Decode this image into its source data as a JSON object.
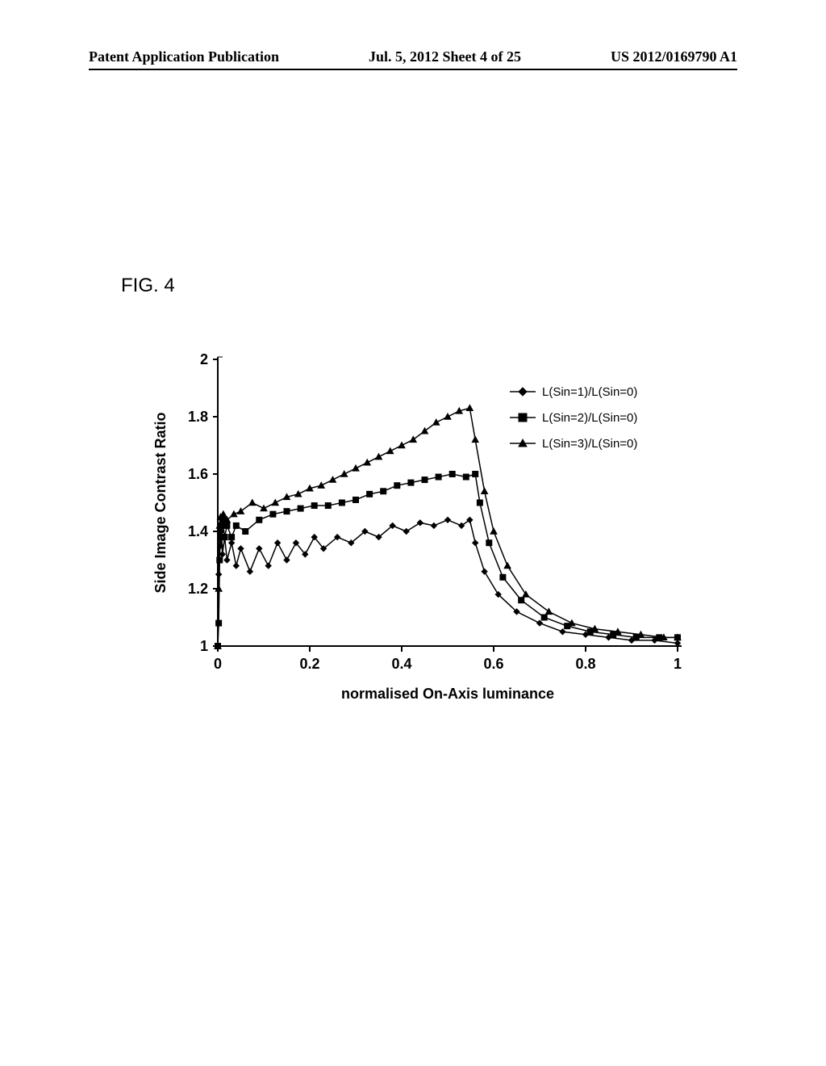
{
  "header": {
    "left": "Patent Application Publication",
    "center": "Jul. 5, 2012  Sheet 4 of 25",
    "right": "US 2012/0169790 A1"
  },
  "figure_label": "FIG.  4",
  "chart": {
    "type": "line",
    "xlabel": "normalised On-Axis luminance",
    "ylabel": "Side Image Contrast Ratio",
    "label_fontsize": 18,
    "tick_fontsize": 18,
    "background_color": "#ffffff",
    "axis_color": "#000000",
    "xlim": [
      0,
      1
    ],
    "ylim": [
      1,
      2
    ],
    "xticks": [
      0,
      0.2,
      0.4,
      0.6,
      0.8,
      1
    ],
    "yticks": [
      1,
      1.2,
      1.4,
      1.6,
      1.8,
      2
    ],
    "legend": {
      "position": "right-top-inside",
      "items": [
        {
          "label": "L(Sin=1)/L(Sin=0)",
          "marker": "diamond",
          "color": "#000000"
        },
        {
          "label": "L(Sin=2)/L(Sin=0)",
          "marker": "square",
          "color": "#000000"
        },
        {
          "label": "L(Sin=3)/L(Sin=0)",
          "marker": "triangle",
          "color": "#000000"
        }
      ]
    },
    "series": [
      {
        "name": "L(Sin=1)/L(Sin=0)",
        "marker": "diamond",
        "color": "#000000",
        "line_width": 1.5,
        "marker_size": 7,
        "points": [
          [
            0.0,
            1.0
          ],
          [
            0.002,
            1.25
          ],
          [
            0.004,
            1.4
          ],
          [
            0.006,
            1.35
          ],
          [
            0.008,
            1.4
          ],
          [
            0.01,
            1.32
          ],
          [
            0.015,
            1.38
          ],
          [
            0.02,
            1.3
          ],
          [
            0.03,
            1.36
          ],
          [
            0.04,
            1.28
          ],
          [
            0.05,
            1.34
          ],
          [
            0.07,
            1.26
          ],
          [
            0.09,
            1.34
          ],
          [
            0.11,
            1.28
          ],
          [
            0.13,
            1.36
          ],
          [
            0.15,
            1.3
          ],
          [
            0.17,
            1.36
          ],
          [
            0.19,
            1.32
          ],
          [
            0.21,
            1.38
          ],
          [
            0.23,
            1.34
          ],
          [
            0.26,
            1.38
          ],
          [
            0.29,
            1.36
          ],
          [
            0.32,
            1.4
          ],
          [
            0.35,
            1.38
          ],
          [
            0.38,
            1.42
          ],
          [
            0.41,
            1.4
          ],
          [
            0.44,
            1.43
          ],
          [
            0.47,
            1.42
          ],
          [
            0.5,
            1.44
          ],
          [
            0.53,
            1.42
          ],
          [
            0.548,
            1.44
          ],
          [
            0.56,
            1.36
          ],
          [
            0.58,
            1.26
          ],
          [
            0.61,
            1.18
          ],
          [
            0.65,
            1.12
          ],
          [
            0.7,
            1.08
          ],
          [
            0.75,
            1.05
          ],
          [
            0.8,
            1.04
          ],
          [
            0.85,
            1.03
          ],
          [
            0.9,
            1.02
          ],
          [
            0.95,
            1.02
          ],
          [
            1.0,
            1.01
          ]
        ]
      },
      {
        "name": "L(Sin=2)/L(Sin=0)",
        "marker": "square",
        "color": "#000000",
        "line_width": 1.5,
        "marker_size": 7,
        "points": [
          [
            0.0,
            1.0
          ],
          [
            0.002,
            1.08
          ],
          [
            0.004,
            1.3
          ],
          [
            0.006,
            1.42
          ],
          [
            0.008,
            1.38
          ],
          [
            0.01,
            1.44
          ],
          [
            0.015,
            1.38
          ],
          [
            0.02,
            1.42
          ],
          [
            0.03,
            1.38
          ],
          [
            0.04,
            1.42
          ],
          [
            0.06,
            1.4
          ],
          [
            0.09,
            1.44
          ],
          [
            0.12,
            1.46
          ],
          [
            0.15,
            1.47
          ],
          [
            0.18,
            1.48
          ],
          [
            0.21,
            1.49
          ],
          [
            0.24,
            1.49
          ],
          [
            0.27,
            1.5
          ],
          [
            0.3,
            1.51
          ],
          [
            0.33,
            1.53
          ],
          [
            0.36,
            1.54
          ],
          [
            0.39,
            1.56
          ],
          [
            0.42,
            1.57
          ],
          [
            0.45,
            1.58
          ],
          [
            0.48,
            1.59
          ],
          [
            0.51,
            1.6
          ],
          [
            0.54,
            1.59
          ],
          [
            0.56,
            1.6
          ],
          [
            0.57,
            1.5
          ],
          [
            0.59,
            1.36
          ],
          [
            0.62,
            1.24
          ],
          [
            0.66,
            1.16
          ],
          [
            0.71,
            1.1
          ],
          [
            0.76,
            1.07
          ],
          [
            0.81,
            1.05
          ],
          [
            0.86,
            1.04
          ],
          [
            0.91,
            1.03
          ],
          [
            0.96,
            1.03
          ],
          [
            1.0,
            1.03
          ]
        ]
      },
      {
        "name": "L(Sin=3)/L(Sin=0)",
        "marker": "triangle",
        "color": "#000000",
        "line_width": 1.5,
        "marker_size": 8,
        "points": [
          [
            0.0,
            1.0
          ],
          [
            0.002,
            1.2
          ],
          [
            0.004,
            1.42
          ],
          [
            0.006,
            1.45
          ],
          [
            0.008,
            1.43
          ],
          [
            0.012,
            1.46
          ],
          [
            0.02,
            1.44
          ],
          [
            0.035,
            1.46
          ],
          [
            0.05,
            1.47
          ],
          [
            0.075,
            1.5
          ],
          [
            0.1,
            1.48
          ],
          [
            0.125,
            1.5
          ],
          [
            0.15,
            1.52
          ],
          [
            0.175,
            1.53
          ],
          [
            0.2,
            1.55
          ],
          [
            0.225,
            1.56
          ],
          [
            0.25,
            1.58
          ],
          [
            0.275,
            1.6
          ],
          [
            0.3,
            1.62
          ],
          [
            0.325,
            1.64
          ],
          [
            0.35,
            1.66
          ],
          [
            0.375,
            1.68
          ],
          [
            0.4,
            1.7
          ],
          [
            0.425,
            1.72
          ],
          [
            0.45,
            1.75
          ],
          [
            0.475,
            1.78
          ],
          [
            0.5,
            1.8
          ],
          [
            0.525,
            1.82
          ],
          [
            0.548,
            1.83
          ],
          [
            0.56,
            1.72
          ],
          [
            0.58,
            1.54
          ],
          [
            0.6,
            1.4
          ],
          [
            0.63,
            1.28
          ],
          [
            0.67,
            1.18
          ],
          [
            0.72,
            1.12
          ],
          [
            0.77,
            1.08
          ],
          [
            0.82,
            1.06
          ],
          [
            0.87,
            1.05
          ],
          [
            0.92,
            1.04
          ],
          [
            0.97,
            1.03
          ],
          [
            1.0,
            1.03
          ]
        ]
      }
    ]
  }
}
